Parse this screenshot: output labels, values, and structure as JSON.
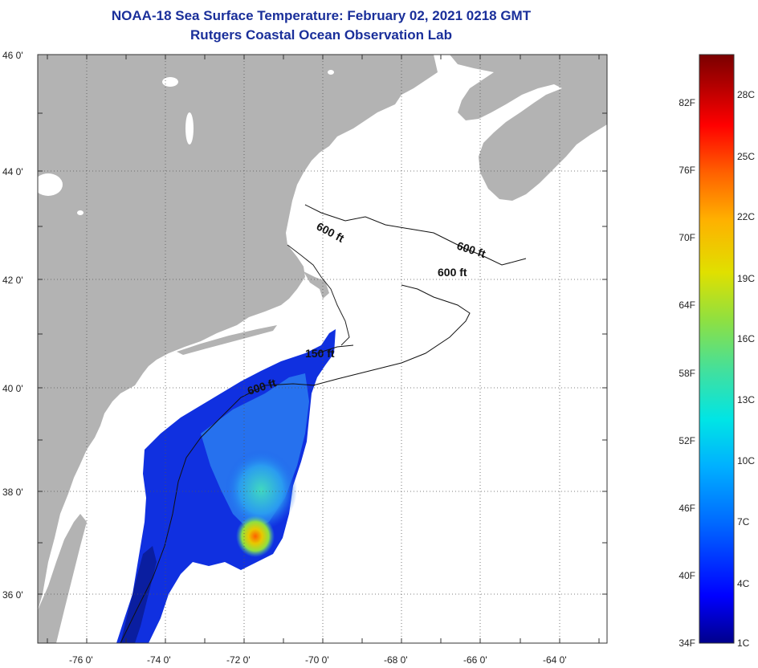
{
  "title_line1": "NOAA-18 Sea Surface Temperature:  February 02, 2021 0218 GMT",
  "title_line2": "Rutgers Coastal Ocean Observation Lab",
  "map": {
    "lat_labels": [
      "46 0'",
      "44 0'",
      "42 0'",
      "40 0'",
      "38 0'",
      "36 0'"
    ],
    "lon_labels": [
      "-76 0'",
      "-74 0'",
      "-72 0'",
      "-70 0'",
      "-68 0'",
      "-66 0'",
      "-64 0'"
    ],
    "contour_labels": [
      "600 ft",
      "600 ft",
      "600 ft",
      "150 ft",
      "600 ft"
    ],
    "colors": {
      "land": "#b3b3b3",
      "water": "#ffffff"
    }
  },
  "colorbar": {
    "fahrenheit_labels": [
      "82F",
      "76F",
      "70F",
      "64F",
      "58F",
      "52F",
      "46F",
      "40F",
      "34F"
    ],
    "celsius_labels": [
      "28C",
      "25C",
      "22C",
      "19C",
      "16C",
      "13C",
      "10C",
      "7C",
      "4C",
      "1C"
    ],
    "gradient": [
      "#00008b",
      "#0000ff",
      "#0066ff",
      "#00b0ff",
      "#00e5e5",
      "#40e0a0",
      "#90e040",
      "#e0e000",
      "#ffb000",
      "#ff6000",
      "#ff0000",
      "#b00000",
      "#7a0000"
    ]
  }
}
